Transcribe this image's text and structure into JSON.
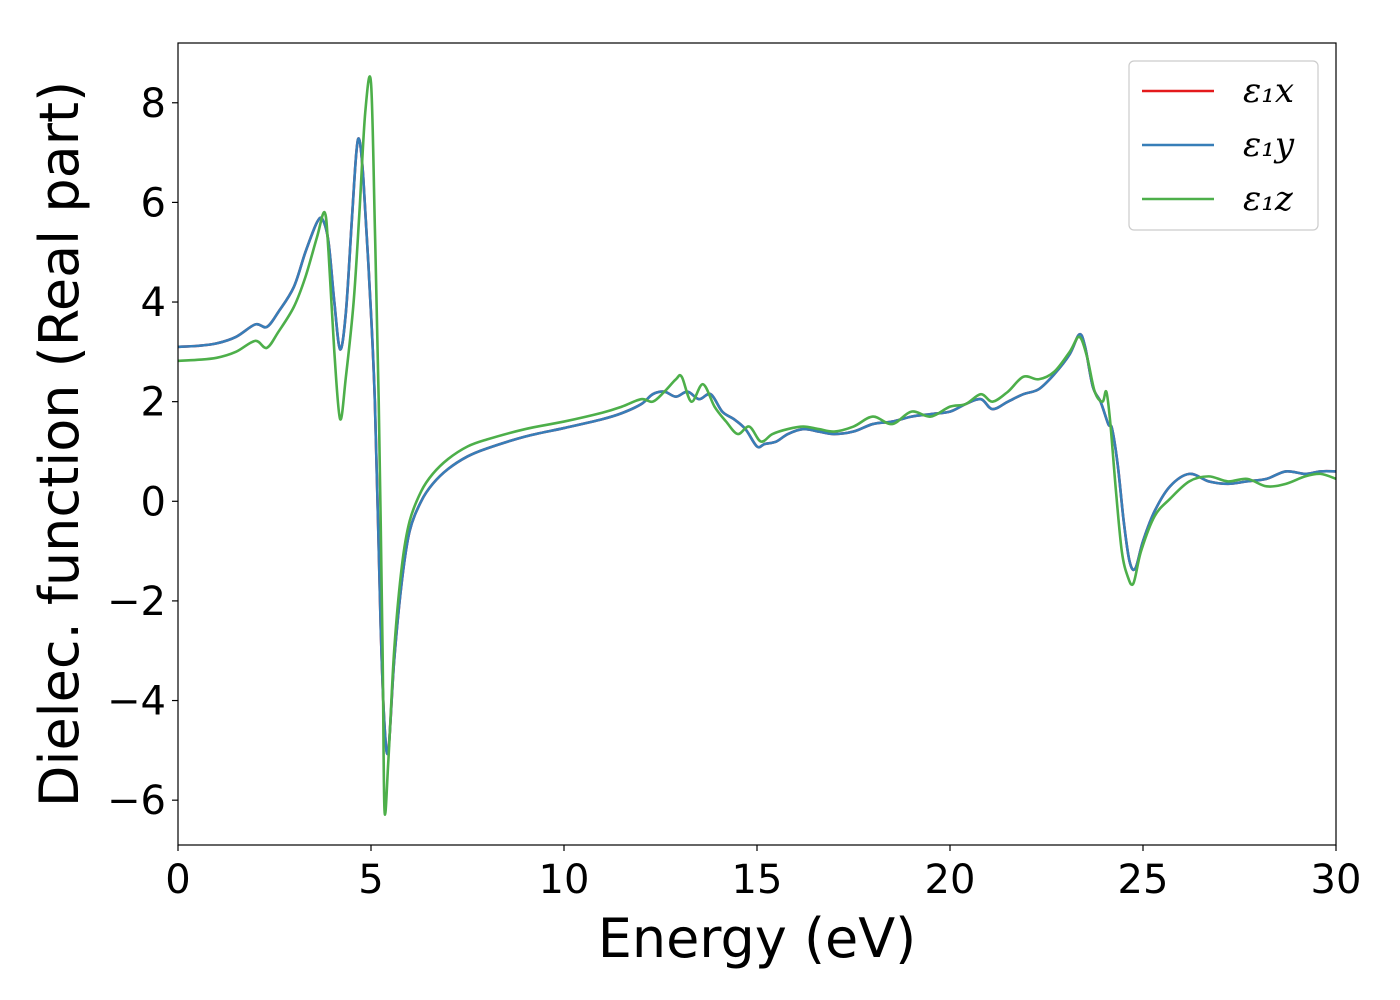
{
  "chart_data": {
    "type": "line",
    "title": "",
    "xlabel": "Energy (eV)",
    "ylabel": "Dielec. function (Real part)",
    "xlim": [
      0,
      30
    ],
    "ylim": [
      -6.9,
      9.2
    ],
    "xticks": [
      0,
      5,
      10,
      15,
      20,
      25,
      30
    ],
    "xtick_labels": [
      "0",
      "5",
      "10",
      "15",
      "20",
      "25",
      "30"
    ],
    "yticks": [
      -6,
      -4,
      -2,
      0,
      2,
      4,
      6,
      8
    ],
    "ytick_labels": [
      "−6",
      "−4",
      "−2",
      "0",
      "2",
      "4",
      "6",
      "8"
    ],
    "grid": false,
    "legend_position": "top-right",
    "series": [
      {
        "name": "ε₁x",
        "color": "#e41a1c",
        "x": [
          0,
          0.5,
          1,
          1.5,
          2,
          2.3,
          2.6,
          3,
          3.3,
          3.6,
          3.75,
          3.9,
          4.05,
          4.2,
          4.35,
          4.5,
          4.62,
          4.7,
          4.8,
          4.95,
          5.1,
          5.25,
          5.35,
          5.45,
          5.6,
          5.8,
          6,
          6.3,
          6.6,
          7,
          7.5,
          8,
          9,
          10,
          11,
          11.5,
          12,
          12.3,
          12.6,
          12.9,
          13.2,
          13.5,
          13.8,
          14.1,
          14.4,
          14.7,
          15,
          15.2,
          15.5,
          15.8,
          16.2,
          16.6,
          17,
          17.5,
          18,
          18.5,
          19,
          19.5,
          20,
          20.4,
          20.8,
          21.1,
          21.5,
          21.9,
          22.3,
          22.7,
          23.1,
          23.35,
          23.5,
          23.7,
          23.9,
          24.1,
          24.2,
          24.35,
          24.5,
          24.65,
          24.8,
          25,
          25.3,
          25.7,
          26.2,
          26.7,
          27.2,
          27.7,
          28.2,
          28.7,
          29.2,
          29.6,
          30
        ],
        "y": [
          3.1,
          3.12,
          3.17,
          3.3,
          3.55,
          3.5,
          3.8,
          4.3,
          5.0,
          5.6,
          5.65,
          5.2,
          4.0,
          3.05,
          3.8,
          5.6,
          7.0,
          7.25,
          6.5,
          4.5,
          2.0,
          -2.5,
          -4.5,
          -5.0,
          -3.2,
          -1.6,
          -0.6,
          0.0,
          0.35,
          0.65,
          0.9,
          1.06,
          1.3,
          1.47,
          1.65,
          1.77,
          1.95,
          2.15,
          2.2,
          2.1,
          2.2,
          2.05,
          2.15,
          1.8,
          1.65,
          1.45,
          1.1,
          1.15,
          1.2,
          1.35,
          1.45,
          1.4,
          1.35,
          1.4,
          1.55,
          1.6,
          1.7,
          1.75,
          1.8,
          1.95,
          2.05,
          1.85,
          2.0,
          2.15,
          2.25,
          2.55,
          2.95,
          3.35,
          3.1,
          2.3,
          2.0,
          1.55,
          1.45,
          0.7,
          -0.4,
          -1.2,
          -1.35,
          -0.8,
          -0.2,
          0.3,
          0.55,
          0.4,
          0.35,
          0.4,
          0.45,
          0.6,
          0.55,
          0.6,
          0.6
        ]
      },
      {
        "name": "ε₁y",
        "color": "#377eb8",
        "x": [
          0,
          0.5,
          1,
          1.5,
          2,
          2.3,
          2.6,
          3,
          3.3,
          3.6,
          3.75,
          3.9,
          4.05,
          4.2,
          4.35,
          4.5,
          4.62,
          4.7,
          4.8,
          4.95,
          5.1,
          5.25,
          5.35,
          5.45,
          5.6,
          5.8,
          6,
          6.3,
          6.6,
          7,
          7.5,
          8,
          9,
          10,
          11,
          11.5,
          12,
          12.3,
          12.6,
          12.9,
          13.2,
          13.5,
          13.8,
          14.1,
          14.4,
          14.7,
          15,
          15.2,
          15.5,
          15.8,
          16.2,
          16.6,
          17,
          17.5,
          18,
          18.5,
          19,
          19.5,
          20,
          20.4,
          20.8,
          21.1,
          21.5,
          21.9,
          22.3,
          22.7,
          23.1,
          23.35,
          23.5,
          23.7,
          23.9,
          24.1,
          24.2,
          24.35,
          24.5,
          24.65,
          24.8,
          25,
          25.3,
          25.7,
          26.2,
          26.7,
          27.2,
          27.7,
          28.2,
          28.7,
          29.2,
          29.6,
          30
        ],
        "y": [
          3.1,
          3.12,
          3.17,
          3.3,
          3.55,
          3.5,
          3.8,
          4.3,
          5.0,
          5.6,
          5.65,
          5.2,
          4.0,
          3.05,
          3.8,
          5.6,
          7.0,
          7.25,
          6.5,
          4.5,
          2.0,
          -2.5,
          -4.5,
          -5.0,
          -3.2,
          -1.6,
          -0.6,
          0.0,
          0.35,
          0.65,
          0.9,
          1.06,
          1.3,
          1.47,
          1.65,
          1.77,
          1.95,
          2.15,
          2.2,
          2.1,
          2.2,
          2.05,
          2.15,
          1.8,
          1.65,
          1.45,
          1.1,
          1.15,
          1.2,
          1.35,
          1.45,
          1.4,
          1.35,
          1.4,
          1.55,
          1.6,
          1.7,
          1.75,
          1.8,
          1.95,
          2.05,
          1.85,
          2.0,
          2.15,
          2.25,
          2.55,
          2.95,
          3.35,
          3.1,
          2.3,
          2.0,
          1.55,
          1.45,
          0.7,
          -0.4,
          -1.2,
          -1.35,
          -0.8,
          -0.2,
          0.3,
          0.55,
          0.4,
          0.35,
          0.4,
          0.45,
          0.6,
          0.55,
          0.6,
          0.6
        ]
      },
      {
        "name": "ε₁z",
        "color": "#4daf4a",
        "x": [
          0,
          0.5,
          1,
          1.5,
          2,
          2.3,
          2.6,
          3,
          3.3,
          3.6,
          3.8,
          3.9,
          4.05,
          4.2,
          4.35,
          4.55,
          4.7,
          4.85,
          5.0,
          5.1,
          5.2,
          5.3,
          5.35,
          5.45,
          5.6,
          5.8,
          6,
          6.3,
          6.6,
          7,
          7.5,
          8,
          9,
          10,
          11,
          11.5,
          12,
          12.3,
          12.6,
          12.9,
          13.05,
          13.3,
          13.6,
          13.9,
          14.2,
          14.5,
          14.8,
          15.1,
          15.4,
          15.8,
          16.2,
          16.6,
          17,
          17.5,
          18,
          18.5,
          19,
          19.5,
          20,
          20.4,
          20.8,
          21.1,
          21.5,
          21.9,
          22.3,
          22.7,
          23.1,
          23.35,
          23.55,
          23.75,
          23.95,
          24.05,
          24.15,
          24.3,
          24.45,
          24.6,
          24.75,
          24.95,
          25.3,
          25.7,
          26.2,
          26.7,
          27.2,
          27.7,
          28.2,
          28.7,
          29.2,
          29.6,
          30
        ],
        "y": [
          2.82,
          2.84,
          2.88,
          3.0,
          3.22,
          3.08,
          3.4,
          3.9,
          4.5,
          5.3,
          5.8,
          5.0,
          3.0,
          1.65,
          2.5,
          4.0,
          5.8,
          7.8,
          8.4,
          5.5,
          2.0,
          -3.0,
          -6.2,
          -5.2,
          -3.0,
          -1.3,
          -0.4,
          0.2,
          0.55,
          0.85,
          1.1,
          1.24,
          1.45,
          1.6,
          1.78,
          1.9,
          2.05,
          2.0,
          2.2,
          2.45,
          2.5,
          2.0,
          2.35,
          1.9,
          1.6,
          1.35,
          1.5,
          1.2,
          1.35,
          1.45,
          1.5,
          1.45,
          1.4,
          1.5,
          1.7,
          1.55,
          1.8,
          1.7,
          1.9,
          1.95,
          2.15,
          2.0,
          2.2,
          2.5,
          2.45,
          2.6,
          3.0,
          3.3,
          2.9,
          2.2,
          2.0,
          2.2,
          1.6,
          0.2,
          -1.0,
          -1.5,
          -1.65,
          -1.0,
          -0.3,
          0.05,
          0.4,
          0.5,
          0.4,
          0.45,
          0.3,
          0.35,
          0.5,
          0.55,
          0.45
        ]
      }
    ]
  }
}
